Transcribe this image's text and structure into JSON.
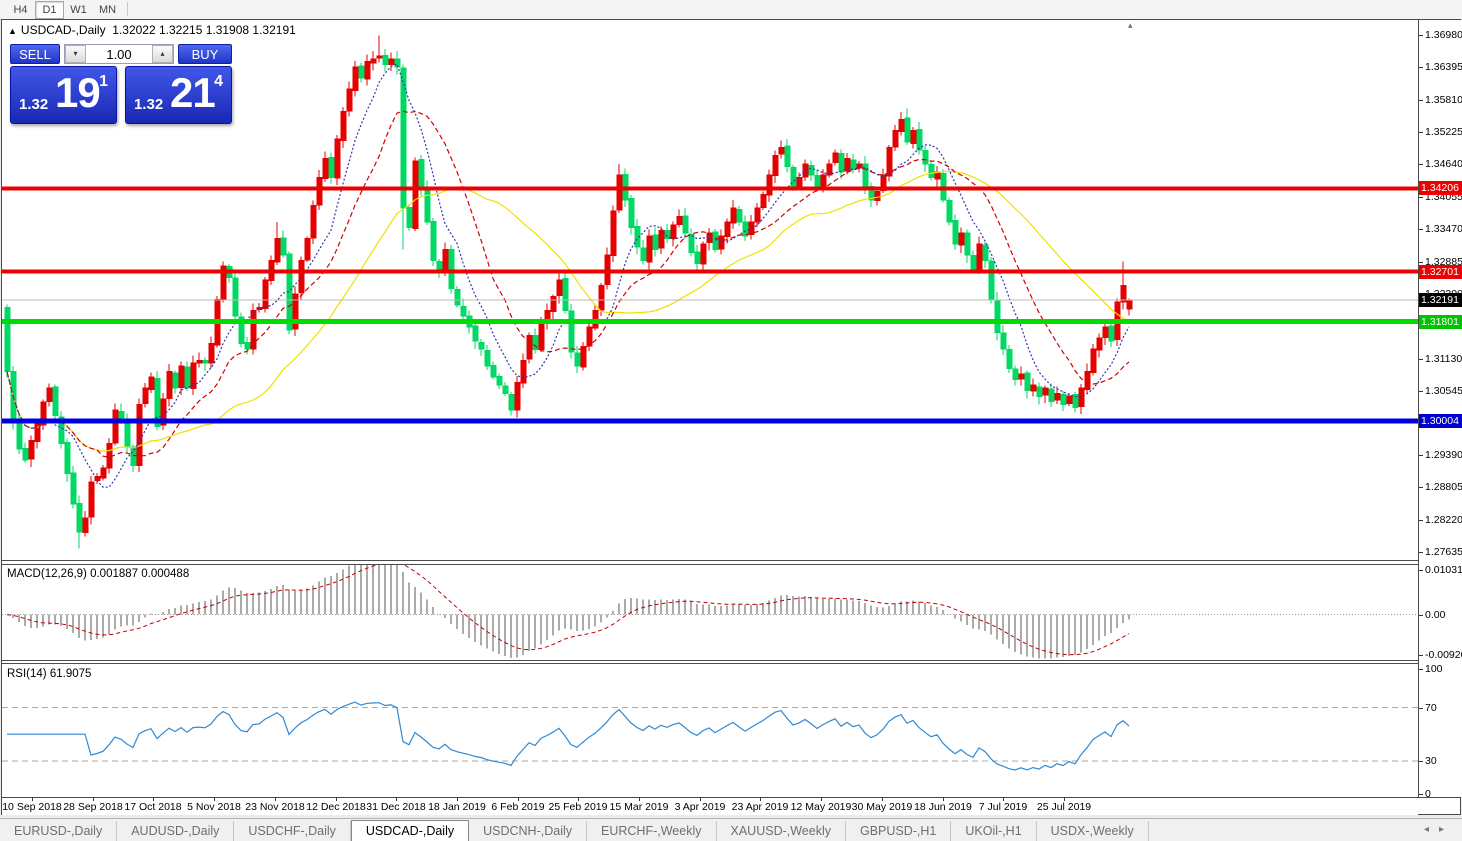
{
  "toolbar": {
    "timeframes": [
      {
        "label": "H4",
        "active": false
      },
      {
        "label": "D1",
        "active": true
      },
      {
        "label": "W1",
        "active": false
      },
      {
        "label": "MN",
        "active": false
      }
    ]
  },
  "chart": {
    "header": {
      "collapse_icon": "▲",
      "title": "USDCAD-,Daily",
      "ohlc": "1.32022 1.32215 1.31908 1.32191"
    },
    "end_marker_icon": "▴",
    "trade_panel": {
      "sell_label": "SELL",
      "buy_label": "BUY",
      "volume": "1.00",
      "dec_icon": "▾",
      "inc_icon": "▴",
      "sell_price": {
        "prefix": "1.32",
        "big": "19",
        "sup": "1"
      },
      "buy_price": {
        "prefix": "1.32",
        "big": "21",
        "sup": "4"
      }
    }
  },
  "chart_data": {
    "type": "candlestick",
    "symbol": "USDCAD-,Daily",
    "ohlc_header": {
      "open": 1.32022,
      "high": 1.32215,
      "low": 1.31908,
      "close": 1.32191
    },
    "y_axis": {
      "price_max": 1.37233,
      "price_min": 1.2749
    },
    "price_axis_ticks": [
      "1.36980",
      "1.36395",
      "1.35810",
      "1.35225",
      "1.34640",
      "1.34055",
      "1.33470",
      "1.32885",
      "1.32300",
      "1.31715",
      "1.31130",
      "1.30545",
      "1.29390",
      "1.28805",
      "1.28220",
      "1.27635"
    ],
    "levels": [
      {
        "label": "1.34206",
        "price": 1.34206,
        "color": "#EE0000",
        "width": 4,
        "label_bg": "#EE0000"
      },
      {
        "label": "1.32701",
        "price": 1.32701,
        "color": "#EE0000",
        "width": 4,
        "label_bg": "#EE0000"
      },
      {
        "label": "1.32191",
        "price": 1.32191,
        "color": "#BBBBBB",
        "width": 1,
        "label_bg": "#000000",
        "is_current": true
      },
      {
        "label": "1.31801",
        "price": 1.31801,
        "color": "#00DC00",
        "width": 5,
        "label_bg": "#00C400"
      },
      {
        "label": "1.30004",
        "price": 1.30004,
        "color": "#0000E0",
        "width": 5,
        "label_bg": "#0000D0"
      }
    ],
    "first_open": 1.3205,
    "closes": [
      1.309,
      1.3,
      1.295,
      1.293,
      1.2965,
      1.2995,
      1.3035,
      1.306,
      1.301,
      1.296,
      1.2905,
      1.285,
      1.28,
      1.2825,
      1.289,
      1.29,
      1.2915,
      1.296,
      1.302,
      1.3,
      1.2955,
      1.292,
      1.303,
      1.306,
      1.308,
      1.299,
      1.304,
      1.309,
      1.306,
      1.31,
      1.306,
      1.3105,
      1.311,
      1.3105,
      1.314,
      1.322,
      1.328,
      1.326,
      1.319,
      1.314,
      1.313,
      1.32,
      1.3205,
      1.3255,
      1.329,
      1.333,
      1.33,
      1.3165,
      1.323,
      1.329,
      1.333,
      1.339,
      1.344,
      1.3475,
      1.344,
      1.351,
      1.356,
      1.36,
      1.364,
      1.362,
      1.365,
      1.3655,
      1.366,
      1.3645,
      1.3655,
      1.364,
      1.3385,
      1.335,
      1.347,
      1.342,
      1.336,
      1.329,
      1.327,
      1.331,
      1.324,
      1.321,
      1.319,
      1.317,
      1.3145,
      1.313,
      1.31,
      1.308,
      1.3065,
      1.305,
      1.302,
      1.307,
      1.311,
      1.3155,
      1.313,
      1.318,
      1.32,
      1.3225,
      1.3255,
      1.32,
      1.3125,
      1.31,
      1.3135,
      1.317,
      1.32,
      1.3245,
      1.33,
      1.338,
      1.3445,
      1.34,
      1.335,
      1.3315,
      1.329,
      1.3335,
      1.331,
      1.3345,
      1.333,
      1.3355,
      1.337,
      1.334,
      1.3305,
      1.3285,
      1.332,
      1.334,
      1.331,
      1.3335,
      1.336,
      1.3385,
      1.336,
      1.3335,
      1.336,
      1.3385,
      1.341,
      1.3445,
      1.348,
      1.3495,
      1.346,
      1.3425,
      1.344,
      1.3465,
      1.3445,
      1.342,
      1.3445,
      1.3465,
      1.3485,
      1.345,
      1.3475,
      1.3455,
      1.3465,
      1.3425,
      1.34,
      1.3415,
      1.3445,
      1.3495,
      1.3525,
      1.3545,
      1.3505,
      1.3525,
      1.349,
      1.3465,
      1.344,
      1.345,
      1.34,
      1.336,
      1.332,
      1.334,
      1.33,
      1.3275,
      1.332,
      1.329,
      1.322,
      1.316,
      1.313,
      1.3095,
      1.3075,
      1.3085,
      1.3055,
      1.3065,
      1.3045,
      1.306,
      1.3035,
      1.305,
      1.303,
      1.3045,
      1.3025,
      1.306,
      1.309,
      1.313,
      1.315,
      1.317,
      1.3145,
      1.3215,
      1.3245,
      1.32191
    ],
    "wick_overrides": {
      "12": {
        "l": 1.277
      },
      "45": {
        "h": 1.336
      },
      "62": {
        "h": 1.3697
      },
      "66": {
        "l": 1.331
      },
      "102": {
        "h": 1.3465
      },
      "150": {
        "h": 1.3565
      },
      "186": {
        "h": 1.3289
      }
    },
    "last_candle": {
      "o": 1.32022,
      "h": 1.32215,
      "l": 1.31908,
      "c": 1.32191
    },
    "moving_averages": [
      {
        "period": 34,
        "color": "#F0E000",
        "dash": ""
      },
      {
        "period": 16,
        "color": "#D40000",
        "dash": "5 3"
      },
      {
        "period": 8,
        "color": "#3333B2",
        "dash": "2 2"
      }
    ],
    "macd": {
      "header_label": "MACD(12,26,9)",
      "header_values": "0.001887 0.000488",
      "fast": 12,
      "slow": 26,
      "signal": 9,
      "range": [
        -0.0102,
        0.0112
      ],
      "axis": [
        {
          "label": "0.010311",
          "value": 0.010311
        },
        {
          "label": "0.00",
          "value": 0
        },
        {
          "label": "-0.009203",
          "value": -0.009203
        }
      ]
    },
    "rsi": {
      "header_label": "RSI(14)",
      "header_value": "61.9075",
      "period": 14,
      "range": [
        1.9,
        103.0
      ],
      "levels": [
        70,
        30
      ],
      "axis": [
        {
          "label": "100",
          "value": 100
        },
        {
          "label": "70",
          "value": 70
        },
        {
          "label": "30",
          "value": 30
        },
        {
          "label": "0",
          "value": 0
        }
      ]
    },
    "x_labels": [
      "10 Sep 2018",
      "28 Sep 2018",
      "17 Oct 2018",
      "5 Nov 2018",
      "23 Nov 2018",
      "12 Dec 2018",
      "31 Dec 2018",
      "18 Jan 2019",
      "6 Feb 2019",
      "25 Feb 2019",
      "15 Mar 2019",
      "3 Apr 2019",
      "23 Apr 2019",
      "12 May 2019",
      "30 May 2019",
      "18 Jun 2019",
      "7 Jul 2019",
      "25 Jul 2019"
    ],
    "colors": {
      "up": "#E60000",
      "down": "#00D964",
      "macd_hist": "#ABABAB",
      "macd_signal": "#C00000",
      "macd_zero": "#999999",
      "rsi_line": "#2F89D5",
      "rsi_level": "#AAAAAA"
    }
  },
  "tabs": {
    "left_arrow": "◂",
    "right_arrow": "▸",
    "items": [
      {
        "label": "EURUSD-,Daily",
        "active": false
      },
      {
        "label": "AUDUSD-,Daily",
        "active": false
      },
      {
        "label": "USDCHF-,Daily",
        "active": false
      },
      {
        "label": "USDCAD-,Daily",
        "active": true
      },
      {
        "label": "USDCNH-,Daily",
        "active": false
      },
      {
        "label": "EURCHF-,Weekly",
        "active": false
      },
      {
        "label": "XAUUSD-,Weekly",
        "active": false
      },
      {
        "label": "GBPUSD-,H1",
        "active": false
      },
      {
        "label": "UKOil-,H1",
        "active": false
      },
      {
        "label": "USDX-,Weekly",
        "active": false
      }
    ]
  }
}
